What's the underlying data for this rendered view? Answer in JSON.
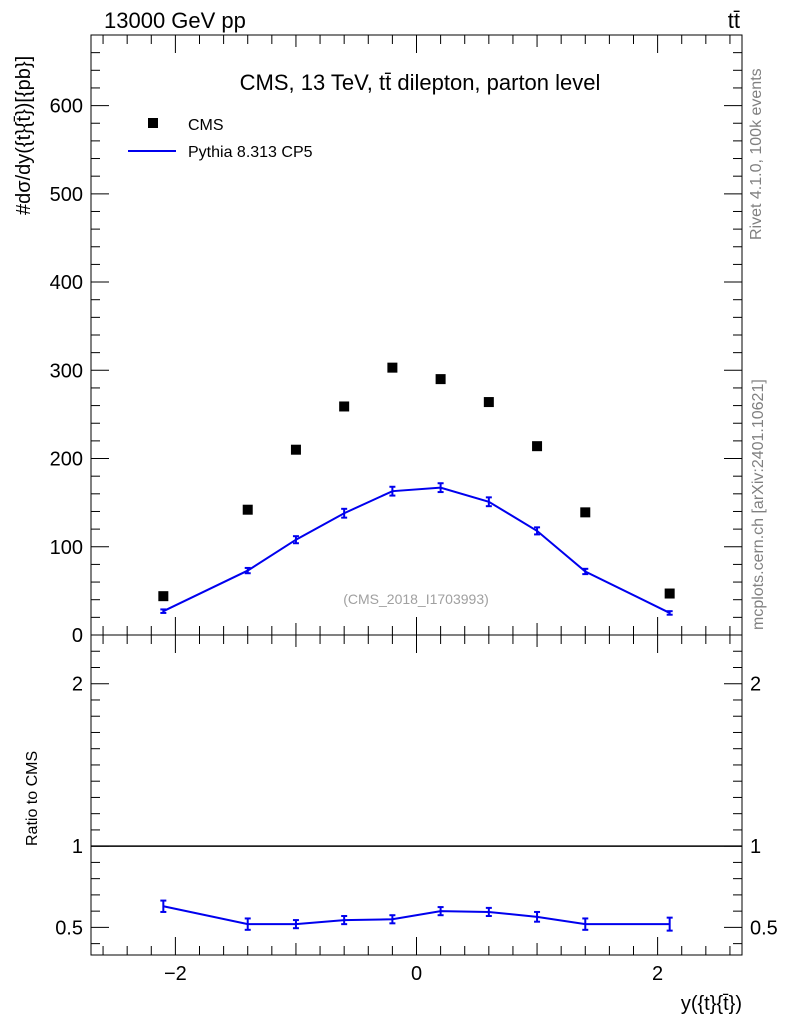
{
  "header": {
    "energy_label": "13000 GeV pp",
    "process_label": "tt̄"
  },
  "side": {
    "rivet": "Rivet 4.1.0,  100k events",
    "mcplots": "mcplots.cern.ch [arXiv:2401.10621]"
  },
  "chart_data": {
    "type": "scatter",
    "title": "CMS, 13 TeV, tt̄ dilepton, parton level",
    "analysis_id": "(CMS_2018_I1703993)",
    "xlabel": "y({t}{t̄})",
    "ylabel": "#dσ/dy({t}{t̄})[{pb}]",
    "ratio_ylabel": "Ratio to CMS",
    "xlim": [
      -2.7,
      2.7
    ],
    "ylim": [
      0,
      680
    ],
    "ratio_ylim": [
      0.33,
      2.3
    ],
    "x_ticks": [
      -2,
      0,
      2
    ],
    "x_tick_labels": [
      "−2",
      "0",
      "2"
    ],
    "y_ticks": [
      0,
      100,
      200,
      300,
      400,
      500,
      600
    ],
    "y_tick_labels": [
      "0",
      "100",
      "200",
      "300",
      "400",
      "500",
      "600"
    ],
    "ratio_ticks": [
      0.5,
      1,
      2
    ],
    "ratio_tick_labels": [
      "0.5",
      "1",
      "2"
    ],
    "legend": {
      "position": "top-left",
      "entries": [
        "CMS",
        "Pythia 8.313 CP5"
      ]
    },
    "series": [
      {
        "name": "CMS",
        "style": "markers",
        "color": "#000000",
        "x": [
          -2.1,
          -1.4,
          -1.0,
          -0.6,
          -0.2,
          0.2,
          0.6,
          1.0,
          1.4,
          2.1
        ],
        "y": [
          44,
          142,
          210,
          259,
          303,
          290,
          264,
          214,
          139,
          47
        ]
      },
      {
        "name": "Pythia 8.313 CP5",
        "style": "line",
        "color": "#0000ee",
        "x": [
          -2.1,
          -1.4,
          -1.0,
          -0.6,
          -0.2,
          0.2,
          0.6,
          1.0,
          1.4,
          2.1
        ],
        "y": [
          27,
          73,
          108,
          138,
          163,
          167,
          151,
          118,
          72,
          25
        ],
        "yerr": [
          2,
          3,
          4,
          5,
          5,
          5,
          5,
          4,
          3,
          2
        ],
        "ratio": [
          0.63,
          0.52,
          0.52,
          0.545,
          0.55,
          0.6,
          0.595,
          0.565,
          0.52,
          0.52
        ],
        "ratio_err": [
          0.035,
          0.035,
          0.025,
          0.025,
          0.025,
          0.025,
          0.025,
          0.03,
          0.035,
          0.04
        ]
      }
    ]
  }
}
